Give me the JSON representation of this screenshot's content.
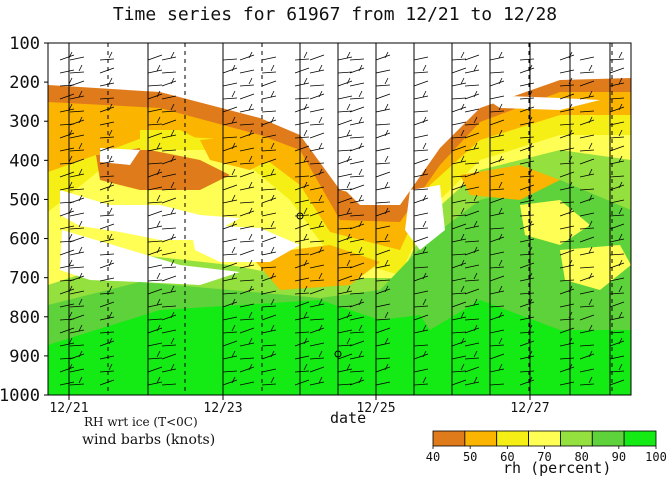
{
  "title": "Time series for 61967 from 12/21 to 12/28",
  "notes": {
    "rh_note": "RH wrt ice (T<0C)",
    "wind_note": "wind barbs (knots)"
  },
  "chart_data": {
    "type": "heatmap",
    "xlabel": "date",
    "x_tick_labels": [
      "12/21",
      "12/23",
      "12/25",
      "12/27"
    ],
    "y_tick_labels": [
      "100",
      "200",
      "300",
      "400",
      "500",
      "600",
      "700",
      "800",
      "900",
      "1000"
    ],
    "ylim": [
      1000,
      100
    ],
    "colorbar": {
      "label": "rh (percent)",
      "levels": [
        "40",
        "50",
        "60",
        "70",
        "80",
        "90",
        "100"
      ],
      "colors": [
        "#e07b1c",
        "#fbb400",
        "#f5ef16",
        "#fefe54",
        "#94e03e",
        "#5ed23a",
        "#14ea14"
      ]
    },
    "legend_position": "bottom-right",
    "grid": false
  }
}
